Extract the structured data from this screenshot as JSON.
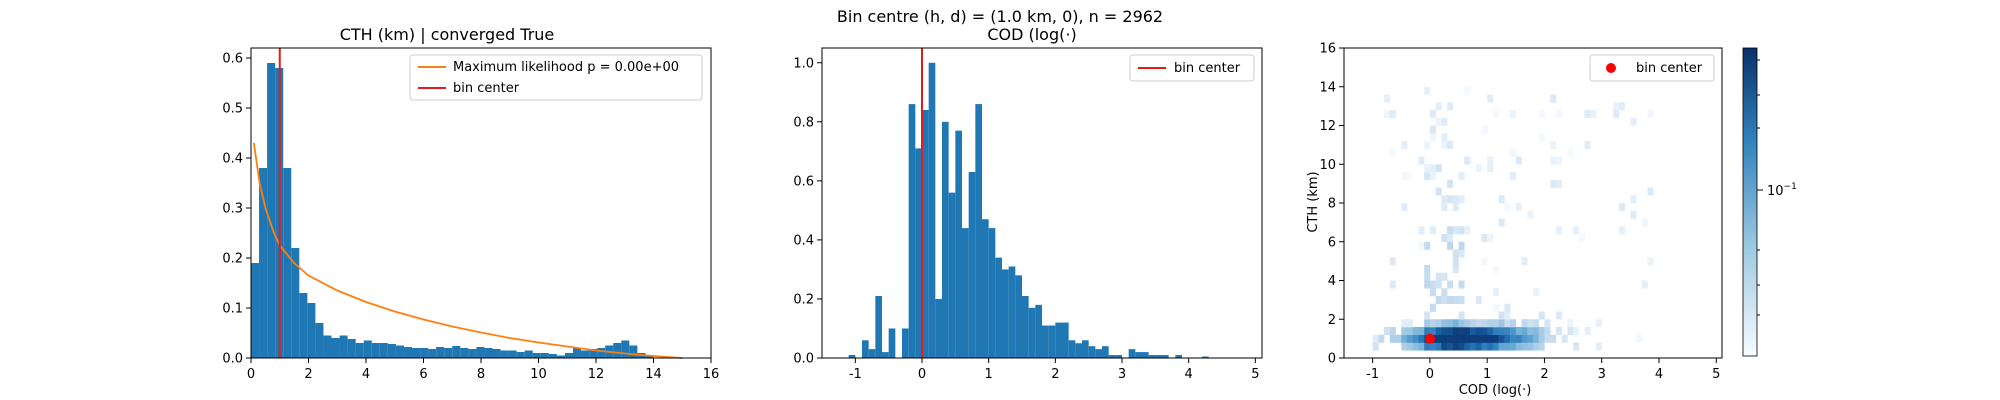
{
  "suptitle": "Bin centre (h, d) = (1.0 km, 0), n = 2962",
  "colors": {
    "bar": "#1f77b4",
    "fit_line": "#ff7f0e",
    "bin_center": "#e41a1c",
    "axis": "#000000",
    "background": "#ffffff"
  },
  "chart_data": [
    {
      "type": "bar",
      "title": "CTH (km) | converged True",
      "xlabel": "",
      "ylabel": "",
      "xlim": [
        0,
        16
      ],
      "ylim": [
        0,
        0.62
      ],
      "xticks": [
        0,
        2,
        4,
        6,
        8,
        10,
        12,
        14,
        16
      ],
      "yticks": [
        0.0,
        0.1,
        0.2,
        0.3,
        0.4,
        0.5,
        0.6
      ],
      "ytick_labels": [
        "0.0",
        "0.1",
        "0.2",
        "0.3",
        "0.4",
        "0.5",
        "0.6"
      ],
      "bin_start": 0.0,
      "bin_width": 0.28,
      "values": [
        0.19,
        0.38,
        0.59,
        0.58,
        0.38,
        0.22,
        0.13,
        0.11,
        0.07,
        0.045,
        0.04,
        0.045,
        0.038,
        0.03,
        0.035,
        0.03,
        0.03,
        0.028,
        0.025,
        0.022,
        0.02,
        0.02,
        0.018,
        0.022,
        0.02,
        0.024,
        0.02,
        0.018,
        0.022,
        0.02,
        0.018,
        0.015,
        0.015,
        0.012,
        0.015,
        0.01,
        0.01,
        0.008,
        0.005,
        0.01,
        0.02,
        0.015,
        0.018,
        0.02,
        0.025,
        0.03,
        0.035,
        0.025,
        0.01,
        0.005
      ],
      "fit_curve": {
        "label": "Maximum likelihood p = 0.00e+00",
        "x": [
          0.1,
          0.3,
          0.5,
          0.8,
          1.0,
          1.5,
          2.0,
          3.0,
          4.0,
          5.0,
          6.0,
          7.0,
          8.0,
          9.0,
          10.0,
          11.0,
          12.0,
          13.0,
          14.0,
          14.5,
          15.0
        ],
        "y": [
          0.43,
          0.35,
          0.3,
          0.25,
          0.225,
          0.19,
          0.165,
          0.135,
          0.112,
          0.093,
          0.077,
          0.063,
          0.051,
          0.04,
          0.031,
          0.023,
          0.015,
          0.009,
          0.004,
          0.002,
          0.0
        ]
      },
      "bin_center": {
        "label": "bin center",
        "x": 1.0
      },
      "legend": "top-right"
    },
    {
      "type": "bar",
      "title": "COD (log(·)",
      "xlabel": "",
      "ylabel": "",
      "xlim": [
        -1.5,
        5.1
      ],
      "ylim": [
        0,
        1.05
      ],
      "xticks": [
        -1,
        0,
        1,
        2,
        3,
        4,
        5
      ],
      "yticks": [
        0.0,
        0.2,
        0.4,
        0.6,
        0.8,
        1.0
      ],
      "ytick_labels": [
        "0.0",
        "0.2",
        "0.4",
        "0.6",
        "0.8",
        "1.0"
      ],
      "bin_start": -1.1,
      "bin_width": 0.1,
      "values": [
        0.01,
        0.0,
        0.06,
        0.03,
        0.21,
        0.02,
        0.1,
        0.0,
        0.1,
        0.86,
        0.71,
        0.84,
        1.0,
        0.2,
        0.8,
        0.56,
        0.77,
        0.44,
        0.63,
        0.86,
        0.47,
        0.44,
        0.34,
        0.3,
        0.31,
        0.28,
        0.21,
        0.17,
        0.18,
        0.11,
        0.11,
        0.12,
        0.12,
        0.06,
        0.05,
        0.06,
        0.04,
        0.03,
        0.04,
        0.01,
        0.01,
        0.0,
        0.03,
        0.02,
        0.02,
        0.01,
        0.01,
        0.01,
        0.0,
        0.01,
        0.0,
        0.0,
        0.0,
        0.005
      ],
      "bin_center": {
        "label": "bin center",
        "x": 0.0
      },
      "legend": "top-right"
    },
    {
      "type": "heatmap",
      "title": "",
      "xlabel": "COD (log(·)",
      "ylabel": "CTH (km)",
      "xlim": [
        -1.5,
        5.1
      ],
      "ylim": [
        0,
        16
      ],
      "xticks": [
        -1,
        0,
        1,
        2,
        3,
        4,
        5
      ],
      "yticks": [
        0,
        2,
        4,
        6,
        8,
        10,
        12,
        14,
        16
      ],
      "colorbar_tick_label": "10^{-1}",
      "colormap": "Blues",
      "scale": "log",
      "bin_center": {
        "label": "bin center",
        "x": 0.0,
        "y": 1.0,
        "marker": "circle"
      },
      "legend": "top-right"
    }
  ]
}
